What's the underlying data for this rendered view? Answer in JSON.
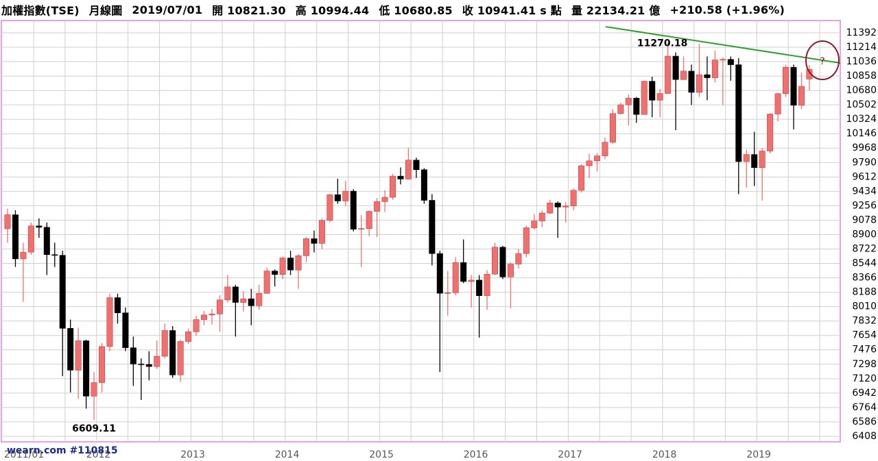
{
  "header": [
    "加權指數(TSE)",
    "月線圖",
    "2019/07/01",
    "開 10821.30",
    "高 10994.44",
    "低 10680.85",
    "收 10941.41 s 點",
    "量 22134.21 億",
    "+210.58 (+1.96%)"
  ],
  "chart_data": {
    "type": "candlestick",
    "annotations": [
      "11270.18",
      "6609.11",
      "?"
    ],
    "watermark": "wearn.com #110815",
    "up_color": "#f07070",
    "down_color": "#000000",
    "grid": true,
    "ylim": [
      6340,
      11544
    ],
    "yticks": [
      11392,
      11214,
      11036,
      10858,
      10680,
      10502,
      10324,
      10146,
      9968,
      9790,
      9612,
      9434,
      9256,
      9078,
      8900,
      8722,
      8544,
      8366,
      8188,
      8010,
      7832,
      7654,
      7476,
      7298,
      7120,
      6942,
      6764,
      6586,
      6408
    ],
    "categories": [
      "2011/01",
      null,
      null,
      null,
      null,
      null,
      null,
      null,
      null,
      null,
      null,
      null,
      "2012",
      null,
      null,
      null,
      null,
      null,
      null,
      null,
      null,
      null,
      null,
      null,
      "2013",
      null,
      null,
      null,
      null,
      null,
      null,
      null,
      null,
      null,
      null,
      null,
      "2014",
      null,
      null,
      null,
      null,
      null,
      null,
      null,
      null,
      null,
      null,
      null,
      "2015",
      null,
      null,
      null,
      null,
      null,
      null,
      null,
      null,
      null,
      null,
      null,
      "2016",
      null,
      null,
      null,
      null,
      null,
      null,
      null,
      null,
      null,
      null,
      null,
      "2017",
      null,
      null,
      null,
      null,
      null,
      null,
      null,
      null,
      null,
      null,
      null,
      "2018",
      null,
      null,
      null,
      null,
      null,
      null,
      null,
      null,
      null,
      null,
      null,
      "2019",
      null,
      null,
      null,
      null,
      null,
      null
    ],
    "open": [
      8972,
      9145,
      8600,
      8683,
      9007,
      8990,
      8652,
      8644,
      7742,
      7225,
      7588,
      6904,
      7072,
      7517,
      8121,
      7933,
      7502,
      7301,
      7296,
      7270,
      7397,
      7715,
      7166,
      7580,
      7699,
      7850,
      7907,
      7919,
      8093,
      8254,
      8062,
      8107,
      8021,
      8174,
      8450,
      8407,
      8611,
      8462,
      8639,
      8849,
      8791,
      9075,
      9393,
      9315,
      9436,
      8966,
      8974,
      9187,
      9307,
      9361,
      9622,
      9586,
      9820,
      9701,
      9323,
      8665,
      8175,
      8181,
      8554,
      8320,
      8338,
      8145,
      8411,
      8744,
      8377,
      8535,
      8666,
      8984,
      9068,
      9166,
      9290,
      9240,
      9254,
      9447,
      9750,
      9811,
      9872,
      10041,
      10395,
      10503,
      10585,
      10384,
      10794,
      10560,
      10643,
      11104,
      10815,
      10919,
      10657,
      10875,
      10837,
      11057,
      11064,
      10998,
      9802,
      9889,
      9727,
      9932,
      10389,
      10641,
      10967,
      10498,
      10821.3
    ],
    "high": [
      9220,
      9200,
      8800,
      9050,
      9100,
      9050,
      8800,
      8700,
      7850,
      7750,
      7600,
      7200,
      7560,
      8170,
      8170,
      8000,
      7640,
      7370,
      7460,
      7590,
      7800,
      7770,
      7600,
      7740,
      7900,
      7960,
      7980,
      8150,
      8400,
      8280,
      8200,
      8230,
      8280,
      8490,
      8470,
      8630,
      8700,
      8660,
      8870,
      8950,
      9100,
      9400,
      9590,
      9560,
      9460,
      9140,
      9200,
      9350,
      9450,
      9650,
      9730,
      9973,
      9850,
      9720,
      9400,
      8700,
      8450,
      8620,
      8840,
      8400,
      8400,
      8460,
      8800,
      8760,
      8560,
      8720,
      9010,
      9150,
      9200,
      9330,
      9310,
      9300,
      9470,
      9770,
      9900,
      9910,
      10100,
      10450,
      10530,
      10630,
      10600,
      10800,
      10850,
      10700,
      11270.18,
      11150,
      11100,
      11000,
      11260,
      11100,
      11170,
      11090,
      11100,
      11080,
      9950,
      10170,
      9970,
      10400,
      10650,
      11000,
      11000,
      10900,
      10994.44
    ],
    "low": [
      8800,
      8500,
      8070,
      8650,
      8860,
      8400,
      8500,
      7150,
      6950,
      6870,
      6750,
      6609.11,
      6950,
      7460,
      7800,
      7460,
      7030,
      6857,
      7100,
      7240,
      7370,
      7130,
      7080,
      7550,
      7650,
      7780,
      7790,
      7700,
      8060,
      7640,
      7950,
      7780,
      7970,
      8170,
      8260,
      8350,
      8400,
      8230,
      8560,
      8680,
      8720,
      9050,
      9280,
      9250,
      8940,
      8500,
      8880,
      8870,
      9180,
      9330,
      9520,
      9580,
      9600,
      9280,
      8520,
      7203,
      7900,
      8150,
      8300,
      8000,
      7627,
      7970,
      8400,
      8350,
      7990,
      8480,
      8620,
      8960,
      8990,
      9150,
      8860,
      9050,
      9200,
      9420,
      9600,
      9680,
      9830,
      10020,
      10380,
      10250,
      10280,
      10380,
      10350,
      10350,
      10640,
      10190,
      10810,
      10500,
      10600,
      10560,
      10780,
      10500,
      10800,
      9400,
      9480,
      9500,
      9320,
      9900,
      10300,
      10600,
      10200,
      10450,
      10680.85
    ],
    "close": [
      9145,
      8600,
      8683,
      9007,
      8990,
      8652,
      8644,
      7742,
      7225,
      7588,
      6904,
      7072,
      7517,
      8121,
      7933,
      7502,
      7301,
      7296,
      7270,
      7397,
      7715,
      7166,
      7580,
      7699,
      7850,
      7907,
      7919,
      8093,
      8254,
      8062,
      8107,
      8021,
      8174,
      8450,
      8407,
      8611,
      8462,
      8639,
      8849,
      8791,
      9075,
      9393,
      9315,
      9436,
      8966,
      8974,
      9187,
      9307,
      9361,
      9622,
      9586,
      9820,
      9701,
      9323,
      8665,
      8175,
      8181,
      8554,
      8320,
      8338,
      8145,
      8411,
      8744,
      8377,
      8535,
      8666,
      8984,
      9068,
      9166,
      9290,
      9240,
      9254,
      9447,
      9750,
      9811,
      9872,
      10041,
      10395,
      10503,
      10585,
      10384,
      10794,
      10560,
      10643,
      11104,
      10815,
      10919,
      10657,
      10875,
      10837,
      11057,
      11064,
      10998,
      9802,
      9889,
      9727,
      9932,
      10389,
      10641,
      10967,
      10498,
      10731,
      10941.41
    ]
  }
}
